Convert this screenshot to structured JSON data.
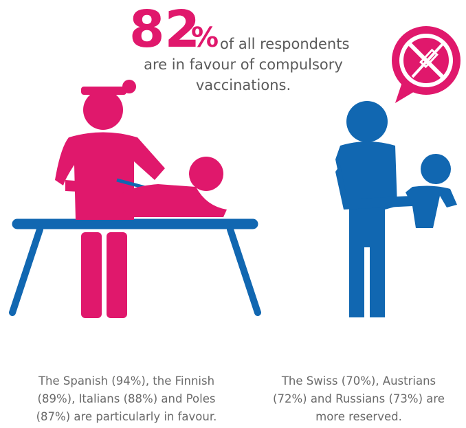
{
  "headline": {
    "number": "82",
    "unit": "%",
    "lines": [
      "of all respondents",
      "are in favour of compulsory",
      "vaccinations."
    ]
  },
  "captions": [
    {
      "lines": [
        "The Spanish (94%), the Finnish",
        "(89%), Italians (88%) and Poles",
        "(87%) are particularly in favour."
      ]
    },
    {
      "lines": [
        "The Swiss (70%), Austrians",
        "(72%) and Russians (73%) are",
        "more reserved."
      ]
    }
  ]
}
